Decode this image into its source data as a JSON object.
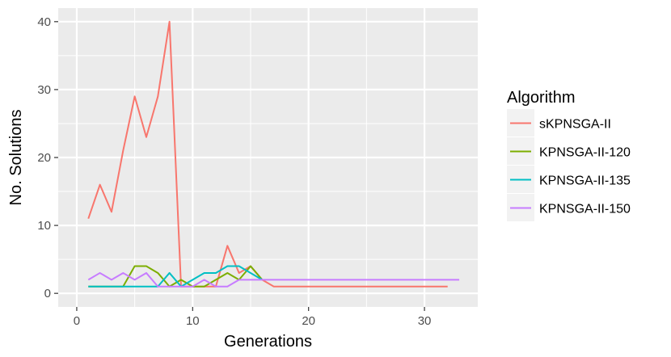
{
  "chart_data": {
    "type": "line",
    "xlabel": "Generations",
    "ylabel": "No. Solutions",
    "xlim": [
      -1.6,
      34.6
    ],
    "ylim": [
      -2,
      42
    ],
    "xticks": [
      0,
      10,
      20,
      30
    ],
    "yticks": [
      0,
      10,
      20,
      30,
      40
    ],
    "legend_title": "Algorithm",
    "legend_position": "right",
    "grid": true,
    "series": [
      {
        "name": "sKPNSGA-II",
        "color": "#F8766D",
        "x": [
          1,
          2,
          3,
          4,
          5,
          6,
          7,
          8,
          9,
          10,
          11,
          12,
          13,
          14,
          15,
          16,
          17,
          18,
          19,
          20,
          21,
          22,
          23,
          24,
          25,
          26,
          27,
          28,
          29,
          30,
          31,
          32
        ],
        "y": [
          11,
          16,
          12,
          21,
          29,
          23,
          29,
          40,
          1,
          1,
          1,
          1,
          7,
          3,
          4,
          2,
          1,
          1,
          1,
          1,
          1,
          1,
          1,
          1,
          1,
          1,
          1,
          1,
          1,
          1,
          1,
          1
        ]
      },
      {
        "name": "KPNSGA-II-120",
        "color": "#7CAE00",
        "x": [
          1,
          2,
          3,
          4,
          5,
          6,
          7,
          8,
          9,
          10,
          11,
          12,
          13,
          14,
          15,
          16
        ],
        "y": [
          1,
          1,
          1,
          1,
          4,
          4,
          3,
          1,
          2,
          1,
          1,
          2,
          3,
          2,
          4,
          2
        ]
      },
      {
        "name": "KPNSGA-II-135",
        "color": "#00BFC4",
        "x": [
          1,
          2,
          3,
          4,
          5,
          6,
          7,
          8,
          9,
          10,
          11,
          12,
          13,
          14,
          15,
          16
        ],
        "y": [
          1,
          1,
          1,
          1,
          1,
          1,
          1,
          3,
          1,
          2,
          3,
          3,
          4,
          4,
          3,
          2
        ]
      },
      {
        "name": "KPNSGA-II-150",
        "color": "#C77CFF",
        "x": [
          1,
          2,
          3,
          4,
          5,
          6,
          7,
          8,
          9,
          10,
          11,
          12,
          13,
          14,
          15,
          16,
          17,
          18,
          19,
          20,
          21,
          22,
          23,
          24,
          25,
          26,
          27,
          28,
          29,
          30,
          31,
          32,
          33
        ],
        "y": [
          2,
          3,
          2,
          3,
          2,
          3,
          1,
          1,
          1,
          1,
          2,
          1,
          1,
          2,
          2,
          2,
          2,
          2,
          2,
          2,
          2,
          2,
          2,
          2,
          2,
          2,
          2,
          2,
          2,
          2,
          2,
          2,
          2
        ]
      }
    ]
  }
}
